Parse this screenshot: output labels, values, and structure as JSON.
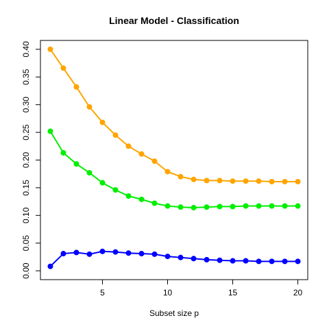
{
  "chart_data": {
    "type": "line",
    "title": "Linear Model - Classification",
    "xlabel": "Subset size p",
    "ylabel": "",
    "xlim": [
      0.24,
      20.76
    ],
    "ylim": [
      -0.016,
      0.416
    ],
    "xticks": [
      5,
      10,
      15,
      20
    ],
    "yticks": [
      0.0,
      0.05,
      0.1,
      0.15,
      0.2,
      0.25,
      0.3,
      0.35,
      0.4
    ],
    "ytick_labels": [
      "0.00",
      "0.05",
      "0.10",
      "0.15",
      "0.20",
      "0.25",
      "0.30",
      "0.35",
      "0.40"
    ],
    "grid": false,
    "legend": "none",
    "x": [
      1,
      2,
      3,
      4,
      5,
      6,
      7,
      8,
      9,
      10,
      11,
      12,
      13,
      14,
      15,
      16,
      17,
      18,
      19,
      20
    ],
    "series": [
      {
        "color": "#FFA500",
        "values": [
          0.4,
          0.366,
          0.332,
          0.296,
          0.268,
          0.245,
          0.225,
          0.211,
          0.198,
          0.179,
          0.17,
          0.165,
          0.163,
          0.163,
          0.162,
          0.162,
          0.162,
          0.161,
          0.161,
          0.161
        ]
      },
      {
        "color": "#00EE00",
        "values": [
          0.252,
          0.213,
          0.193,
          0.177,
          0.159,
          0.146,
          0.135,
          0.129,
          0.122,
          0.117,
          0.115,
          0.114,
          0.115,
          0.116,
          0.116,
          0.117,
          0.117,
          0.117,
          0.117,
          0.117
        ]
      },
      {
        "color": "#0000FF",
        "values": [
          0.008,
          0.031,
          0.033,
          0.03,
          0.035,
          0.034,
          0.032,
          0.031,
          0.03,
          0.026,
          0.024,
          0.022,
          0.02,
          0.019,
          0.018,
          0.018,
          0.017,
          0.017,
          0.017,
          0.017
        ]
      }
    ]
  }
}
